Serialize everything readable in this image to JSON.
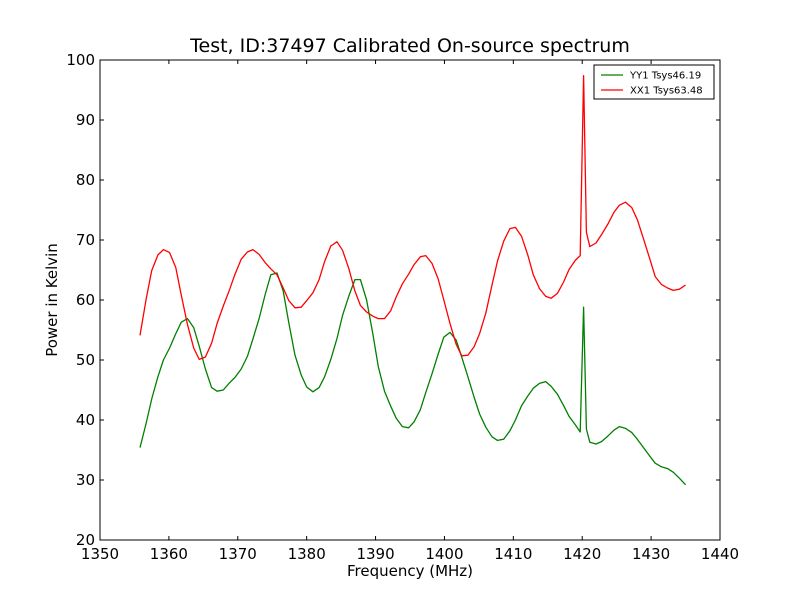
{
  "chart_data": {
    "type": "line",
    "title": "Test, ID:37497 Calibrated On-source spectrum",
    "xlabel": "Frequency (MHz)",
    "ylabel": "Power in Kelvin",
    "xlim": [
      1350,
      1440
    ],
    "ylim": [
      20,
      100
    ],
    "xticks": [
      1350,
      1360,
      1370,
      1380,
      1390,
      1400,
      1410,
      1420,
      1430,
      1440
    ],
    "yticks": [
      20,
      30,
      40,
      50,
      60,
      70,
      80,
      90,
      100
    ],
    "grid": false,
    "legend_position": "top-right",
    "series": [
      {
        "name": "YY1 Tsys46.19",
        "color": "#008000",
        "points": [
          [
            1355.8,
            35.4
          ],
          [
            1356.7,
            39.5
          ],
          [
            1357.5,
            43.5
          ],
          [
            1358.4,
            47.2
          ],
          [
            1359.2,
            50.0
          ],
          [
            1360.1,
            52.0
          ],
          [
            1361.0,
            54.4
          ],
          [
            1361.8,
            56.3
          ],
          [
            1362.7,
            56.9
          ],
          [
            1363.6,
            55.4
          ],
          [
            1364.4,
            52.3
          ],
          [
            1365.3,
            48.5
          ],
          [
            1366.2,
            45.4
          ],
          [
            1367.0,
            44.8
          ],
          [
            1367.9,
            45.0
          ],
          [
            1368.8,
            46.2
          ],
          [
            1369.6,
            47.1
          ],
          [
            1370.5,
            48.5
          ],
          [
            1371.4,
            50.6
          ],
          [
            1372.2,
            53.5
          ],
          [
            1373.1,
            56.9
          ],
          [
            1374.0,
            61.0
          ],
          [
            1374.8,
            64.2
          ],
          [
            1375.7,
            64.5
          ],
          [
            1376.6,
            61.5
          ],
          [
            1377.4,
            56.2
          ],
          [
            1378.3,
            50.8
          ],
          [
            1379.2,
            47.5
          ],
          [
            1380.0,
            45.5
          ],
          [
            1380.9,
            44.7
          ],
          [
            1381.8,
            45.4
          ],
          [
            1382.6,
            47.2
          ],
          [
            1383.5,
            50.1
          ],
          [
            1384.4,
            53.6
          ],
          [
            1385.2,
            57.4
          ],
          [
            1386.1,
            60.6
          ],
          [
            1387.0,
            63.4
          ],
          [
            1387.8,
            63.4
          ],
          [
            1388.7,
            60.0
          ],
          [
            1389.6,
            54.4
          ],
          [
            1390.4,
            48.9
          ],
          [
            1391.3,
            44.8
          ],
          [
            1392.2,
            42.3
          ],
          [
            1393.0,
            40.3
          ],
          [
            1393.9,
            38.9
          ],
          [
            1394.8,
            38.7
          ],
          [
            1395.6,
            39.7
          ],
          [
            1396.5,
            41.7
          ],
          [
            1397.3,
            44.6
          ],
          [
            1398.2,
            47.7
          ],
          [
            1399.1,
            51.0
          ],
          [
            1399.9,
            53.8
          ],
          [
            1400.8,
            54.6
          ],
          [
            1401.7,
            53.3
          ],
          [
            1402.5,
            50.5
          ],
          [
            1403.4,
            47.2
          ],
          [
            1404.3,
            43.8
          ],
          [
            1405.1,
            41.0
          ],
          [
            1406.0,
            38.8
          ],
          [
            1406.9,
            37.2
          ],
          [
            1407.7,
            36.6
          ],
          [
            1408.6,
            36.8
          ],
          [
            1409.5,
            38.2
          ],
          [
            1410.3,
            40.0
          ],
          [
            1411.2,
            42.4
          ],
          [
            1412.1,
            44.0
          ],
          [
            1412.9,
            45.3
          ],
          [
            1413.8,
            46.1
          ],
          [
            1414.7,
            46.4
          ],
          [
            1415.5,
            45.6
          ],
          [
            1416.4,
            44.3
          ],
          [
            1417.3,
            42.4
          ],
          [
            1418.1,
            40.6
          ],
          [
            1419.0,
            39.2
          ],
          [
            1419.7,
            38.0
          ],
          [
            1420.2,
            58.8
          ],
          [
            1420.6,
            38.5
          ],
          [
            1421.1,
            36.3
          ],
          [
            1422.0,
            36.0
          ],
          [
            1422.8,
            36.4
          ],
          [
            1423.7,
            37.3
          ],
          [
            1424.6,
            38.3
          ],
          [
            1425.4,
            38.9
          ],
          [
            1426.3,
            38.6
          ],
          [
            1427.2,
            37.9
          ],
          [
            1428.0,
            36.8
          ],
          [
            1428.9,
            35.4
          ],
          [
            1429.8,
            34.0
          ],
          [
            1430.6,
            32.8
          ],
          [
            1431.5,
            32.2
          ],
          [
            1432.4,
            31.9
          ],
          [
            1433.2,
            31.3
          ],
          [
            1434.1,
            30.3
          ],
          [
            1435.0,
            29.2
          ]
        ]
      },
      {
        "name": "XX1 Tsys63.48",
        "color": "#ff0000",
        "points": [
          [
            1355.8,
            54.1
          ],
          [
            1356.7,
            60.2
          ],
          [
            1357.5,
            64.9
          ],
          [
            1358.4,
            67.5
          ],
          [
            1359.2,
            68.4
          ],
          [
            1360.1,
            67.9
          ],
          [
            1361.0,
            65.4
          ],
          [
            1361.8,
            60.8
          ],
          [
            1362.7,
            55.9
          ],
          [
            1363.6,
            52.0
          ],
          [
            1364.4,
            50.1
          ],
          [
            1365.3,
            50.5
          ],
          [
            1366.2,
            52.8
          ],
          [
            1367.0,
            56.1
          ],
          [
            1367.9,
            59.0
          ],
          [
            1368.8,
            61.7
          ],
          [
            1369.6,
            64.3
          ],
          [
            1370.5,
            66.8
          ],
          [
            1371.4,
            68.0
          ],
          [
            1372.2,
            68.4
          ],
          [
            1373.1,
            67.6
          ],
          [
            1374.0,
            66.2
          ],
          [
            1374.8,
            65.2
          ],
          [
            1375.7,
            64.2
          ],
          [
            1376.6,
            62.0
          ],
          [
            1377.4,
            59.9
          ],
          [
            1378.3,
            58.7
          ],
          [
            1379.2,
            58.8
          ],
          [
            1380.0,
            59.9
          ],
          [
            1380.9,
            61.2
          ],
          [
            1381.8,
            63.4
          ],
          [
            1382.6,
            66.4
          ],
          [
            1383.5,
            69.0
          ],
          [
            1384.4,
            69.7
          ],
          [
            1385.2,
            68.3
          ],
          [
            1386.1,
            65.3
          ],
          [
            1387.0,
            61.5
          ],
          [
            1387.8,
            59.1
          ],
          [
            1388.7,
            58.0
          ],
          [
            1389.6,
            57.3
          ],
          [
            1390.4,
            56.9
          ],
          [
            1391.3,
            56.9
          ],
          [
            1392.2,
            58.2
          ],
          [
            1393.0,
            60.5
          ],
          [
            1393.9,
            62.7
          ],
          [
            1394.8,
            64.3
          ],
          [
            1395.6,
            65.9
          ],
          [
            1396.5,
            67.2
          ],
          [
            1397.3,
            67.4
          ],
          [
            1398.2,
            66.1
          ],
          [
            1399.1,
            63.5
          ],
          [
            1399.9,
            60.0
          ],
          [
            1400.8,
            56.1
          ],
          [
            1401.7,
            52.6
          ],
          [
            1402.5,
            50.7
          ],
          [
            1403.4,
            50.8
          ],
          [
            1404.3,
            52.2
          ],
          [
            1405.1,
            54.4
          ],
          [
            1406.0,
            57.8
          ],
          [
            1406.9,
            62.5
          ],
          [
            1407.7,
            66.5
          ],
          [
            1408.6,
            69.8
          ],
          [
            1409.5,
            71.9
          ],
          [
            1410.3,
            72.1
          ],
          [
            1411.2,
            70.6
          ],
          [
            1412.1,
            67.5
          ],
          [
            1412.9,
            64.2
          ],
          [
            1413.8,
            61.9
          ],
          [
            1414.7,
            60.6
          ],
          [
            1415.5,
            60.3
          ],
          [
            1416.4,
            61.1
          ],
          [
            1417.3,
            63.0
          ],
          [
            1418.1,
            65.1
          ],
          [
            1419.0,
            66.6
          ],
          [
            1419.7,
            67.4
          ],
          [
            1420.2,
            97.4
          ],
          [
            1420.6,
            71.3
          ],
          [
            1421.1,
            68.9
          ],
          [
            1422.0,
            69.5
          ],
          [
            1422.8,
            70.9
          ],
          [
            1423.7,
            72.6
          ],
          [
            1424.6,
            74.6
          ],
          [
            1425.4,
            75.8
          ],
          [
            1426.3,
            76.3
          ],
          [
            1427.2,
            75.4
          ],
          [
            1428.0,
            73.4
          ],
          [
            1428.9,
            70.2
          ],
          [
            1429.8,
            66.9
          ],
          [
            1430.6,
            63.9
          ],
          [
            1431.5,
            62.6
          ],
          [
            1432.4,
            62.0
          ],
          [
            1433.2,
            61.6
          ],
          [
            1434.1,
            61.8
          ],
          [
            1435.0,
            62.5
          ]
        ]
      }
    ]
  }
}
